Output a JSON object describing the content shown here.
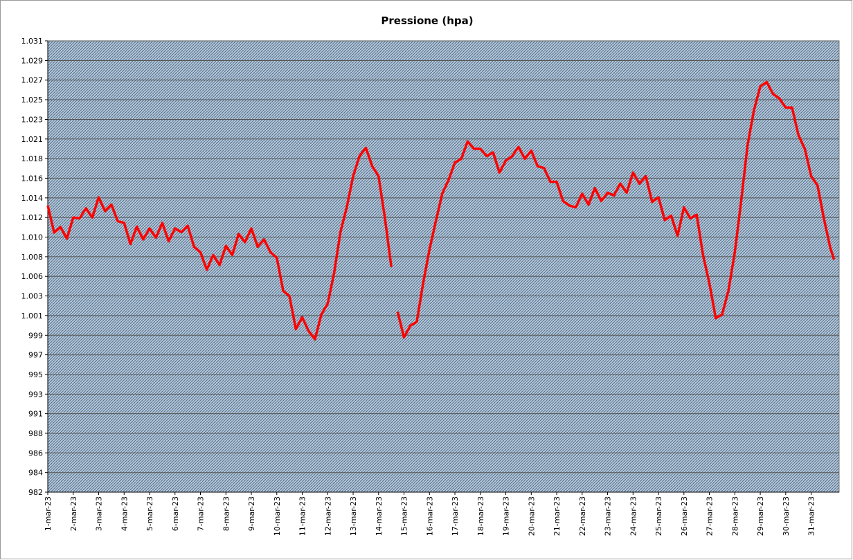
{
  "chart_data": {
    "type": "line",
    "title": "Pressione (hpa)",
    "x": [
      0,
      0.25,
      0.5,
      0.75,
      1,
      1.25,
      1.5,
      1.75,
      2,
      2.25,
      2.5,
      2.75,
      3,
      3.25,
      3.5,
      3.75,
      4,
      4.25,
      4.5,
      4.75,
      5,
      5.25,
      5.5,
      5.75,
      6,
      6.25,
      6.5,
      6.75,
      7,
      7.25,
      7.5,
      7.75,
      8,
      8.25,
      8.5,
      8.75,
      9,
      9.25,
      9.5,
      9.75,
      10,
      10.25,
      10.5,
      10.75,
      11,
      11.25,
      11.5,
      11.75,
      12,
      12.25,
      12.5,
      12.75,
      13,
      13.25,
      13.5,
      13.6,
      13.75,
      14,
      14.25,
      14.5,
      14.75,
      15,
      15.25,
      15.5,
      15.75,
      16,
      16.25,
      16.5,
      16.75,
      17,
      17.25,
      17.5,
      17.75,
      18,
      18.25,
      18.5,
      18.75,
      19,
      19.25,
      19.5,
      19.75,
      20,
      20.25,
      20.5,
      20.75,
      21,
      21.25,
      21.5,
      21.75,
      22,
      22.25,
      22.5,
      22.75,
      23,
      23.25,
      23.5,
      23.75,
      24,
      24.25,
      24.5,
      24.75,
      25,
      25.25,
      25.5,
      25.75,
      26,
      26.25,
      26.5,
      26.75,
      27,
      27.25,
      27.5,
      27.75,
      28,
      28.25,
      28.5,
      28.75,
      29,
      29.25,
      29.5,
      29.75,
      30,
      30.25,
      30.5,
      30.75,
      30.9
    ],
    "series": [
      {
        "color": "#ff0000",
        "values": [
          1013.3,
          1010.35,
          1010.95,
          1009.7,
          1012.0,
          1011.9,
          1013.0,
          1012.0,
          1014.2,
          1012.7,
          1013.4,
          1011.6,
          1011.4,
          1009.1,
          1011.0,
          1009.6,
          1010.8,
          1009.8,
          1011.4,
          1009.4,
          1010.8,
          1010.4,
          1011.1,
          1008.8,
          1008.2,
          1006.3,
          1007.9,
          1006.8,
          1008.9,
          1007.9,
          1010.2,
          1009.3,
          1010.8,
          1008.8,
          1009.6,
          1008.2,
          1007.6,
          1004.0,
          1003.4,
          999.8,
          1001.1,
          999.6,
          998.7,
          1001.4,
          1002.6,
          1005.9,
          1010.4,
          1013.1,
          1016.5,
          1018.7,
          1019.6,
          1017.6,
          1016.5,
          1011.9,
          1006.6,
          null,
          1001.7,
          998.9,
          1000.2,
          1000.6,
          1004.8,
          1008.5,
          1011.6,
          1014.6,
          1016.1,
          1018.0,
          1018.4,
          1020.3,
          1019.5,
          1019.5,
          1018.7,
          1019.1,
          1016.9,
          1018.2,
          1018.7,
          1019.7,
          1018.4,
          1019.3,
          1017.6,
          1017.4,
          1015.9,
          1015.9,
          1013.8,
          1013.3,
          1013.1,
          1014.6,
          1013.4,
          1015.2,
          1013.8,
          1014.7,
          1014.4,
          1015.7,
          1014.7,
          1016.9,
          1015.7,
          1016.5,
          1013.7,
          1014.2,
          1011.7,
          1012.2,
          1010.0,
          1013.1,
          1011.9,
          1012.3,
          1007.9,
          1004.8,
          1001.0,
          1001.4,
          1004.0,
          1008.2,
          1013.8,
          1019.9,
          1023.7,
          1026.3,
          1026.8,
          1025.5,
          1025.0,
          1024.0,
          1024.0,
          1021.0,
          1019.5,
          1016.5,
          1015.5,
          1011.9,
          1008.7,
          1007.4
        ]
      }
    ],
    "xlim": [
      0,
      31.1
    ],
    "xticks": [
      {
        "value": 0,
        "label": "1-mar-23"
      },
      {
        "value": 1,
        "label": "2-mar-23"
      },
      {
        "value": 2,
        "label": "3-mar-23"
      },
      {
        "value": 3,
        "label": "4-mar-23"
      },
      {
        "value": 4,
        "label": "5-mar-23"
      },
      {
        "value": 5,
        "label": "6-mar-23"
      },
      {
        "value": 6,
        "label": "7-mar-23"
      },
      {
        "value": 7,
        "label": "8-mar-23"
      },
      {
        "value": 8,
        "label": "9-mar-23"
      },
      {
        "value": 9,
        "label": "10-mar-23"
      },
      {
        "value": 10,
        "label": "11-mar-23"
      },
      {
        "value": 11,
        "label": "12-mar-23"
      },
      {
        "value": 12,
        "label": "13-mar-23"
      },
      {
        "value": 13,
        "label": "14-mar-23"
      },
      {
        "value": 14,
        "label": "15-mar-23"
      },
      {
        "value": 15,
        "label": "16-mar-23"
      },
      {
        "value": 16,
        "label": "17-mar-23"
      },
      {
        "value": 17,
        "label": "18-mar-23"
      },
      {
        "value": 18,
        "label": "19-mar-23"
      },
      {
        "value": 19,
        "label": "20-mar-23"
      },
      {
        "value": 20,
        "label": "21-mar-23"
      },
      {
        "value": 21,
        "label": "22-mar-23"
      },
      {
        "value": 22,
        "label": "23-mar-23"
      },
      {
        "value": 23,
        "label": "24-mar-23"
      },
      {
        "value": 24,
        "label": "25-mar-23"
      },
      {
        "value": 25,
        "label": "26-mar-23"
      },
      {
        "value": 26,
        "label": "27-mar-23"
      },
      {
        "value": 27,
        "label": "28-mar-23"
      },
      {
        "value": 28,
        "label": "29-mar-23"
      },
      {
        "value": 29,
        "label": "30-mar-23"
      },
      {
        "value": 30,
        "label": "31-mar-23"
      }
    ],
    "ylim": [
      982,
      1031.29
    ],
    "yticks": [
      982,
      {
        "value": 984.14,
        "label": "984"
      },
      {
        "value": 986.29,
        "label": "986"
      },
      {
        "value": 988.43,
        "label": "988"
      },
      {
        "value": 990.57,
        "label": "991"
      },
      {
        "value": 992.71,
        "label": "993"
      },
      {
        "value": 994.86,
        "label": "995"
      },
      997,
      {
        "value": 999.14,
        "label": "999"
      },
      {
        "value": 1001.29,
        "label": "1.001"
      },
      {
        "value": 1003.43,
        "label": "1.003"
      },
      {
        "value": 1005.57,
        "label": "1.006"
      },
      {
        "value": 1007.71,
        "label": "1.008"
      },
      {
        "value": 1009.86,
        "label": "1.010"
      },
      {
        "value": 1012,
        "label": "1.012"
      },
      {
        "value": 1014.14,
        "label": "1.014"
      },
      {
        "value": 1016.29,
        "label": "1.016"
      },
      {
        "value": 1018.43,
        "label": "1.018"
      },
      {
        "value": 1020.57,
        "label": "1.021"
      },
      {
        "value": 1022.71,
        "label": "1.023"
      },
      {
        "value": 1024.86,
        "label": "1.025"
      },
      {
        "value": 1027,
        "label": "1.027"
      },
      {
        "value": 1029.14,
        "label": "1.029"
      },
      {
        "value": 1031.29,
        "label": "1.031"
      }
    ],
    "grid": true
  }
}
